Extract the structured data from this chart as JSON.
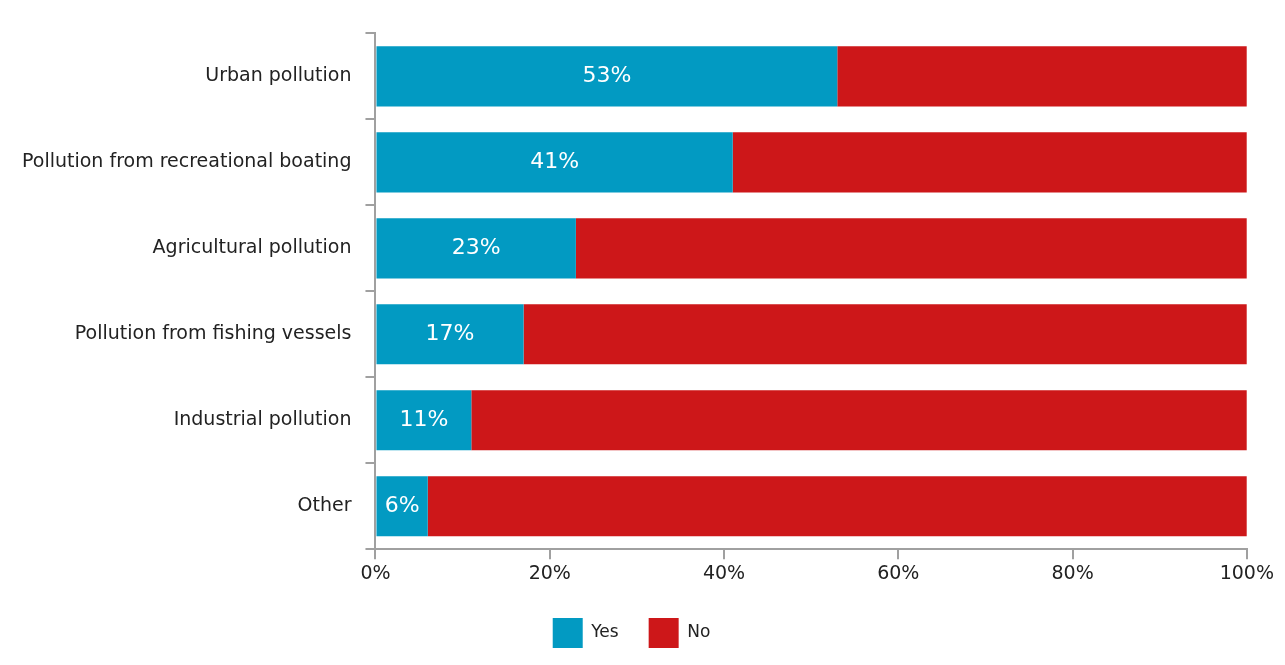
{
  "chart_data": {
    "type": "bar",
    "orientation": "horizontal",
    "stacked": true,
    "categories": [
      "Urban pollution",
      "Pollution from recreational boating",
      "Agricultural pollution",
      "Pollution from fishing vessels",
      "Industrial pollution",
      "Other"
    ],
    "series": [
      {
        "name": "Yes",
        "color": "#029ac2",
        "values": [
          53,
          41,
          23,
          17,
          11,
          6
        ],
        "value_labels": [
          "53%",
          "41%",
          "23%",
          "17%",
          "11%",
          "6%"
        ]
      },
      {
        "name": "No",
        "color": "#cd1719",
        "values": [
          47,
          59,
          77,
          83,
          89,
          94
        ]
      }
    ],
    "xlim": [
      0,
      100
    ],
    "xticks": [
      {
        "value": 0,
        "label": "0%"
      },
      {
        "value": 20,
        "label": "20%"
      },
      {
        "value": 40,
        "label": "40%"
      },
      {
        "value": 60,
        "label": "60%"
      },
      {
        "value": 80,
        "label": "80%"
      },
      {
        "value": 100,
        "label": "100%"
      }
    ],
    "grid": false,
    "legend": "bottom"
  }
}
